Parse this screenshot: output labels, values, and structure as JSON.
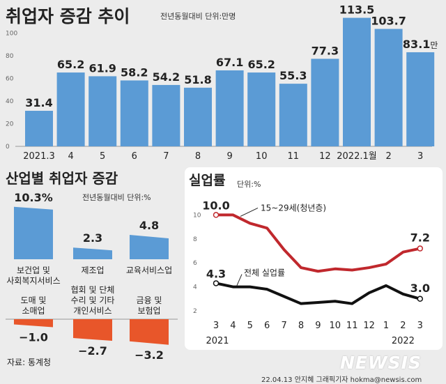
{
  "chart_data": [
    {
      "type": "bar",
      "title": "취업자 증감 추이",
      "subtitle": "전년동월대비 단위:만명",
      "categories": [
        "2021.3",
        "4",
        "5",
        "6",
        "7",
        "8",
        "9",
        "10",
        "11",
        "12",
        "2022.1월",
        "2",
        "3"
      ],
      "values": [
        31.4,
        65.2,
        61.9,
        58.2,
        54.2,
        51.8,
        67.1,
        65.2,
        55.3,
        77.3,
        113.5,
        103.7,
        83.1
      ],
      "value_labels": [
        "31.4",
        "65.2",
        "61.9",
        "58.2",
        "54.2",
        "51.8",
        "67.1",
        "65.2",
        "55.3",
        "77.3",
        "113.5",
        "103.7",
        "83.1"
      ],
      "unit_suffix": "만",
      "yticks": [
        "100",
        "80",
        "60",
        "40",
        "20",
        "0"
      ],
      "ylim": [
        0,
        120
      ],
      "color": "#5b9bd5"
    },
    {
      "type": "bar",
      "title": "산업별 취업자 증감",
      "subtitle": "전년동월대비 단위:%",
      "categories": [
        "보건업 및|사회복지서비스",
        "제조업",
        "교육서비스업",
        "도매 및|소매업",
        "협회 및 단체|수리 및 기타|개인서비스",
        "금융 및|보험업"
      ],
      "positive": [
        {
          "category": "보건업 및|사회복지서비스",
          "value": 10.3,
          "label": "10.3%"
        },
        {
          "category": "제조업",
          "value": 2.3,
          "label": "2.3"
        },
        {
          "category": "교육서비스업",
          "value": 4.8,
          "label": "4.8"
        }
      ],
      "negative": [
        {
          "category": "도매 및|소매업",
          "value": -1.0,
          "label": "−1.0"
        },
        {
          "category": "협회 및 단체|수리 및 기타|개인서비스",
          "value": -2.7,
          "label": "−2.7"
        },
        {
          "category": "금융 및|보험업",
          "value": -3.2,
          "label": "−3.2"
        }
      ],
      "positive_color": "#5b9bd5",
      "negative_color": "#e8562a"
    },
    {
      "type": "line",
      "title": "실업률",
      "subtitle": "단위:%",
      "x": [
        "3",
        "4",
        "5",
        "6",
        "7",
        "8",
        "9",
        "10",
        "11",
        "12",
        "1",
        "2",
        "3"
      ],
      "year_labels": [
        "2021",
        "2022"
      ],
      "yticks": [
        "10",
        "8",
        "6",
        "4",
        "2"
      ],
      "ylim": [
        2,
        10
      ],
      "series": [
        {
          "name": "15~29세(청년층)",
          "color": "#c0282d",
          "values": [
            10.0,
            10.0,
            9.3,
            8.9,
            7.1,
            5.6,
            5.3,
            5.5,
            5.4,
            5.6,
            5.9,
            6.9,
            7.2
          ],
          "start_label": "10.0",
          "end_label": "7.2"
        },
        {
          "name": "전체 실업률",
          "color": "#111111",
          "values": [
            4.3,
            4.0,
            4.0,
            3.8,
            3.2,
            2.6,
            2.7,
            2.8,
            2.6,
            3.5,
            4.1,
            3.4,
            3.0
          ],
          "start_label": "4.3",
          "end_label": "3.0"
        }
      ]
    }
  ],
  "source": "자료: 통계청",
  "credit": "22.04.13 안지혜 그래픽기자 hokma@newsis.com",
  "logo": "NEWSIS"
}
